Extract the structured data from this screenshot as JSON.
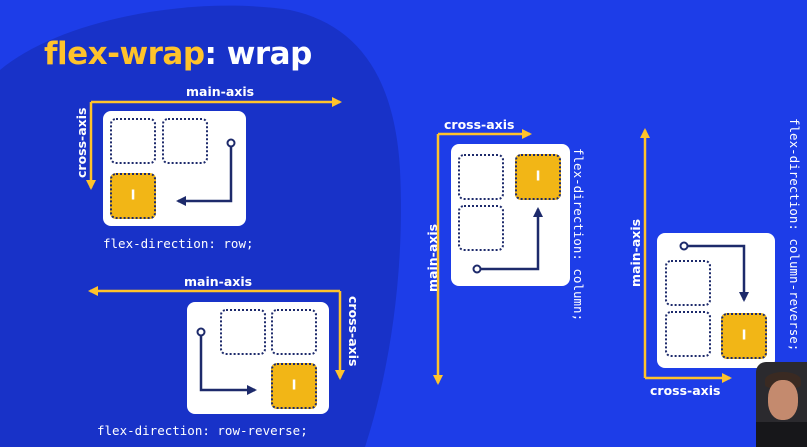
{
  "title": {
    "keyword": "flex-wrap",
    "rest": ": wrap"
  },
  "panels": [
    {
      "direction": "flex-direction: row;",
      "main_axis": "main-axis",
      "cross_axis": "cross-axis",
      "item_label": "I"
    },
    {
      "direction": "flex-direction: row-reverse;",
      "main_axis": "main-axis",
      "cross_axis": "cross-axis",
      "item_label": "I"
    },
    {
      "direction": "flex-direction: column;",
      "main_axis": "main-axis",
      "cross_axis": "cross-axis",
      "item_label": "I"
    },
    {
      "direction": "flex-direction: column-reverse;",
      "main_axis": "main-axis",
      "cross_axis": "cross-axis",
      "item_label": "I"
    }
  ],
  "colors": {
    "background": "#1d3de8",
    "blob": "#1832c8",
    "accent": "#ffc32b",
    "item": "#f2b616",
    "border": "#1d2a6b"
  }
}
